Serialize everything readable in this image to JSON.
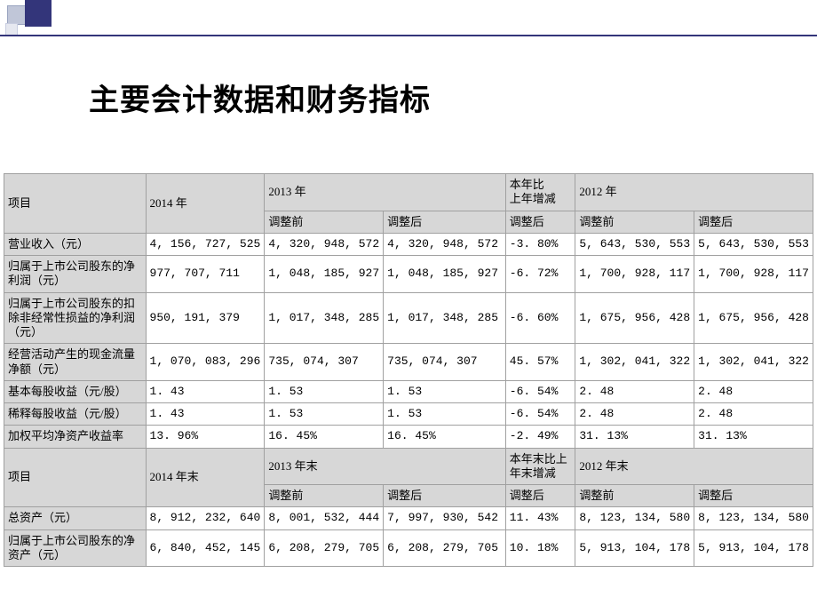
{
  "title": "主要会计数据和财务指标",
  "colors": {
    "header_bg": "#d7d7d7",
    "accent": "#33357a",
    "border": "#a0a0a0",
    "bg": "#ffffff"
  },
  "table1": {
    "head": {
      "project": "项目",
      "y2014": "2014 年",
      "y2013": "2013 年",
      "change": "本年比\n上年增减",
      "y2012": "2012 年",
      "pre": "调整前",
      "post": "调整后"
    },
    "rows": [
      {
        "label": "营业收入（元）",
        "y2014": "4, 156, 727, 525",
        "pre13": "4, 320, 948, 572",
        "post13": "4, 320, 948, 572",
        "chg": "-3. 80%",
        "pre12": "5, 643, 530, 553",
        "post12": "5, 643, 530, 553"
      },
      {
        "label": "归属于上市公司股东的净利润（元）",
        "y2014": "977, 707, 711",
        "pre13": "1, 048, 185, 927",
        "post13": "1, 048, 185, 927",
        "chg": "-6. 72%",
        "pre12": "1, 700, 928, 117",
        "post12": "1, 700, 928, 117"
      },
      {
        "label": "归属于上市公司股东的扣除非经常性损益的净利润（元）",
        "y2014": "950, 191, 379",
        "pre13": "1, 017, 348, 285",
        "post13": "1, 017, 348, 285",
        "chg": "-6. 60%",
        "pre12": "1, 675, 956, 428",
        "post12": "1, 675, 956, 428"
      },
      {
        "label": "经营活动产生的现金流量净额（元）",
        "y2014": "1, 070, 083, 296",
        "pre13": "735, 074, 307",
        "post13": "735, 074, 307",
        "chg": "45. 57%",
        "pre12": "1, 302, 041, 322",
        "post12": "1, 302, 041, 322"
      },
      {
        "label": "基本每股收益（元/股）",
        "y2014": "1. 43",
        "pre13": "1. 53",
        "post13": "1. 53",
        "chg": "-6. 54%",
        "pre12": "2. 48",
        "post12": "2. 48"
      },
      {
        "label": "稀释每股收益（元/股）",
        "y2014": "1. 43",
        "pre13": "1. 53",
        "post13": "1. 53",
        "chg": "-6. 54%",
        "pre12": "2. 48",
        "post12": "2. 48"
      },
      {
        "label": "加权平均净资产收益率",
        "y2014": "13. 96%",
        "pre13": "16. 45%",
        "post13": "16. 45%",
        "chg": "-2. 49%",
        "pre12": "31. 13%",
        "post12": "31. 13%"
      }
    ]
  },
  "table2": {
    "head": {
      "project": "项目",
      "y2014": "2014 年末",
      "y2013": "2013 年末",
      "change": "本年末比上年末增减",
      "y2012": "2012 年末",
      "pre": "调整前",
      "post": "调整后"
    },
    "rows": [
      {
        "label": "总资产（元）",
        "y2014": "8, 912, 232, 640",
        "pre13": "8, 001, 532, 444",
        "post13": "7, 997, 930, 542",
        "chg": "11. 43%",
        "pre12": "8, 123, 134, 580",
        "post12": "8, 123, 134, 580"
      },
      {
        "label": "归属于上市公司股东的净资产（元）",
        "y2014": "6, 840, 452, 145",
        "pre13": "6, 208, 279, 705",
        "post13": "6, 208, 279, 705",
        "chg": "10. 18%",
        "pre12": "5, 913, 104, 178",
        "post12": "5, 913, 104, 178"
      }
    ]
  }
}
